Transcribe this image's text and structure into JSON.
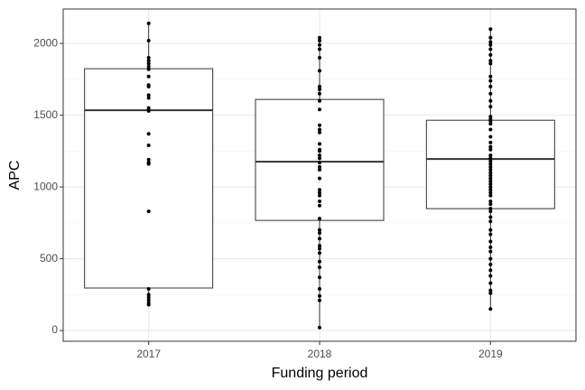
{
  "chart_data": {
    "type": "box",
    "x_label": "Funding period",
    "y_label": "APC",
    "categories": [
      "2017",
      "2018",
      "2019"
    ],
    "boxes": [
      {
        "min": 182,
        "q1": 296,
        "median": 1535,
        "q3": 1824,
        "max": 2151
      },
      {
        "min": 13,
        "q1": 767,
        "median": 1176,
        "q3": 1610,
        "max": 2050
      },
      {
        "min": 151,
        "q1": 849,
        "median": 1195,
        "q3": 1465,
        "max": 2100
      }
    ],
    "points": [
      [
        2140,
        2020,
        1900,
        1880,
        1860,
        1840,
        1820,
        1770,
        1710,
        1700,
        1640,
        1620,
        1550,
        1530,
        1370,
        1290,
        1190,
        1170,
        1160,
        830,
        290,
        250,
        230,
        210,
        190,
        180
      ],
      [
        2040,
        2020,
        1990,
        1960,
        1900,
        1810,
        1700,
        1680,
        1650,
        1600,
        1540,
        1430,
        1400,
        1380,
        1300,
        1260,
        1250,
        1220,
        1200,
        1170,
        1140,
        1120,
        1060,
        980,
        960,
        940,
        900,
        870,
        780,
        700,
        680,
        640,
        590,
        570,
        540,
        480,
        440,
        370,
        290,
        240,
        210,
        20
      ],
      [
        2100,
        2040,
        2010,
        1990,
        1960,
        1920,
        1880,
        1860,
        1770,
        1740,
        1700,
        1650,
        1600,
        1560,
        1490,
        1470,
        1460,
        1440,
        1400,
        1350,
        1310,
        1280,
        1260,
        1220,
        1200,
        1180,
        1160,
        1140,
        1120,
        1100,
        1080,
        1060,
        1040,
        1020,
        1000,
        980,
        960,
        940,
        900,
        880,
        850,
        830,
        790,
        760,
        700,
        670,
        620,
        580,
        550,
        500,
        460,
        420,
        380,
        330,
        280,
        260,
        150
      ]
    ],
    "point_color": "#000000",
    "box_color": "#333333",
    "ylim": [
      -75,
      2240
    ],
    "yticks": [
      0,
      500,
      1000,
      1500,
      2000
    ],
    "grid": true
  }
}
